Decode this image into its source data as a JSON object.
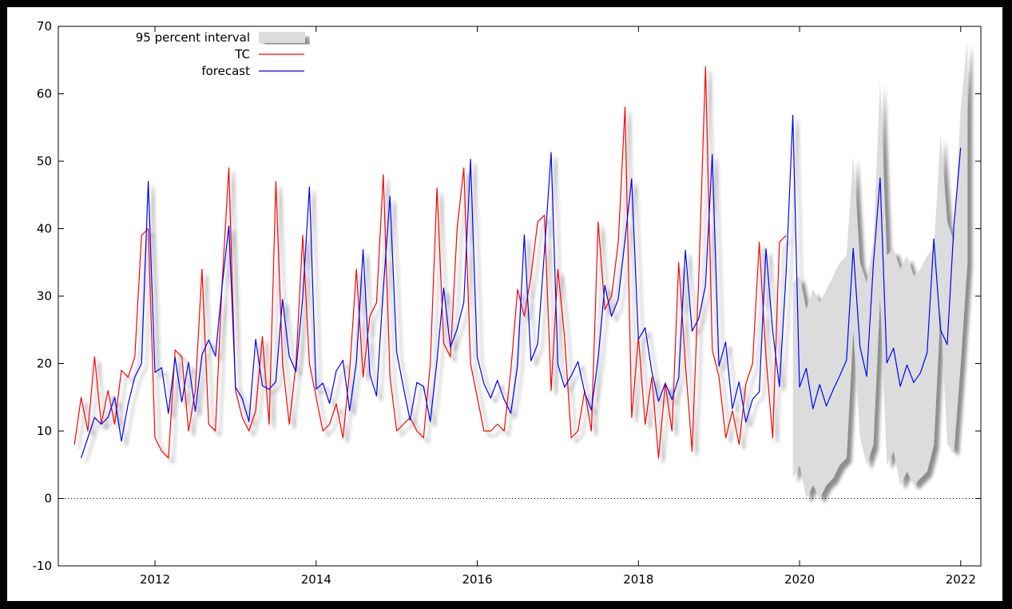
{
  "chart_data": {
    "type": "line",
    "title": "",
    "xlabel": "",
    "ylabel": "",
    "xlim": [
      2010.8,
      2022.25
    ],
    "ylim": [
      -10,
      70
    ],
    "x_ticks": [
      2012,
      2014,
      2016,
      2018,
      2020,
      2022
    ],
    "y_ticks": [
      -10,
      0,
      10,
      20,
      30,
      40,
      50,
      60,
      70
    ],
    "zero_line": true,
    "grid": false,
    "legend_position": "top-left",
    "colors": {
      "interval": "#dcdcdc",
      "tc": "#ff0000",
      "forecast": "#0000ff",
      "shadow": "#9a9a9a"
    },
    "series": [
      {
        "name": "TC",
        "x_start": 2011.0,
        "step": 0.0833333,
        "values": [
          8,
          15,
          10,
          21,
          11,
          16,
          11,
          19,
          18,
          21,
          39,
          40,
          9,
          7,
          6,
          22,
          21,
          10,
          16,
          34,
          11,
          10,
          32,
          49,
          16,
          12,
          10,
          13,
          24,
          11,
          47,
          20,
          11,
          20,
          39,
          20,
          15,
          10,
          11,
          14,
          9,
          19,
          34,
          18,
          27,
          29,
          48,
          18,
          10,
          11,
          12,
          10,
          9,
          20,
          46,
          23,
          21,
          40,
          49,
          20,
          15,
          10,
          10,
          11,
          10,
          19,
          31,
          27,
          33,
          41,
          42,
          16,
          34,
          24,
          9,
          10,
          16,
          10,
          41,
          28,
          30,
          38,
          58,
          12,
          24,
          11,
          18,
          6,
          17,
          10,
          35,
          20,
          7,
          33,
          64,
          22,
          18,
          9,
          13,
          8,
          17,
          20,
          38,
          21,
          9,
          38,
          39
        ]
      },
      {
        "name": "forecast",
        "x_start": 2011.083,
        "step": 0.0833333,
        "values": [
          6,
          9,
          12,
          11,
          12,
          15,
          8.5,
          14,
          18,
          20,
          47,
          18.7,
          19.4,
          12.6,
          20.9,
          14.3,
          20.2,
          12.9,
          21.3,
          23.5,
          21.1,
          31.5,
          40.4,
          16.5,
          14.8,
          11.4,
          23.6,
          16.7,
          16.2,
          17.3,
          29.5,
          21.1,
          18.8,
          29.7,
          46.2,
          16.2,
          17.1,
          14.1,
          18.9,
          20.5,
          13,
          20.2,
          36.9,
          18.4,
          15.2,
          30.8,
          44.8,
          21.7,
          16.5,
          11.6,
          17.2,
          16.6,
          11.4,
          20.4,
          31.2,
          22.4,
          25.1,
          29.1,
          50.3,
          21,
          17,
          14.9,
          17.5,
          14.7,
          12.6,
          19.7,
          39.1,
          20.4,
          22.9,
          36.6,
          51.3,
          19.9,
          16.5,
          18.2,
          20.3,
          15.7,
          13.1,
          20.7,
          31.6,
          27,
          29.5,
          38.2,
          47.4,
          23.6,
          25.3,
          18.8,
          14.4,
          17.1,
          14.7,
          17.9,
          36.8,
          24.8,
          26.7,
          31.6,
          51,
          19.6,
          23.2,
          13.3,
          17.3,
          11.3,
          14.7,
          15.8,
          37,
          24.8,
          16.6,
          33.4,
          56.8,
          16.5,
          19.3,
          13.3,
          16.9,
          13.7,
          16.1,
          18.2,
          20.5,
          37.1,
          22.5,
          18.1,
          34.9,
          47.5,
          20.1,
          22.3,
          16.6,
          19.8,
          17.2,
          18.6,
          21.6,
          38.5,
          25,
          22.8,
          40.5,
          52
        ]
      }
    ],
    "interval": {
      "name": "95 percent interval",
      "x_start": 2019.917,
      "step": 0.0833333,
      "lower": [
        3,
        5,
        0,
        2,
        0,
        2,
        3,
        5,
        6,
        25,
        9,
        5,
        8,
        30,
        5,
        7,
        2,
        4,
        2,
        3,
        4,
        8,
        28,
        8,
        7,
        20,
        35
      ],
      "upper": [
        32,
        33,
        28,
        31,
        29,
        31,
        33,
        35,
        36,
        51,
        35,
        32,
        38,
        62,
        36,
        37,
        34,
        36,
        33,
        34,
        36,
        37,
        54,
        41,
        38,
        58,
        68
      ]
    }
  }
}
